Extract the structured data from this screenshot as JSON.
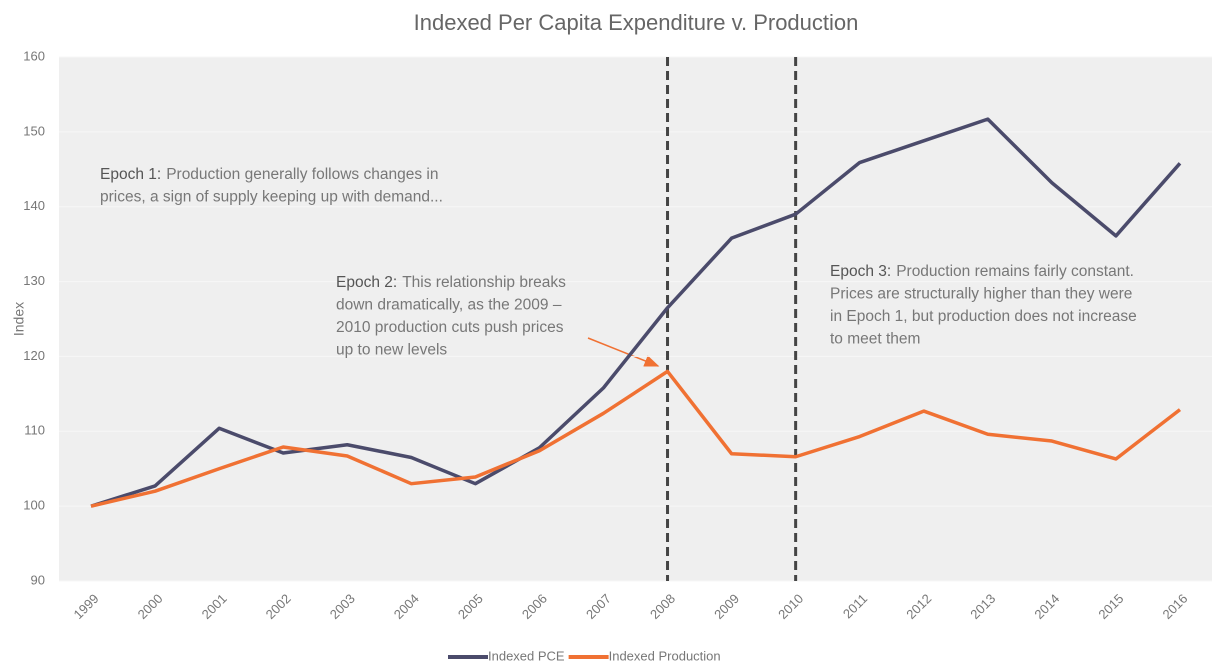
{
  "chart_data": {
    "type": "line",
    "title": "Indexed Per Capita Expenditure v. Production",
    "y_label": "Index",
    "categories": [
      "1999",
      "2000",
      "2001",
      "2002",
      "2003",
      "2004",
      "2005",
      "2006",
      "2007",
      "2008",
      "2009",
      "2010",
      "2011",
      "2012",
      "2013",
      "2014",
      "2015",
      "2016"
    ],
    "series": [
      {
        "name": "Indexed PCE",
        "color": "#4b4b6b",
        "values": [
          100,
          102.7,
          110.4,
          107.1,
          108.2,
          106.5,
          103,
          107.8,
          115.8,
          126.5,
          135.8,
          139,
          145.9,
          148.8,
          151.7,
          143.2,
          136.1,
          145.8
        ]
      },
      {
        "name": "Indexed Production",
        "color": "#f07133",
        "values": [
          100,
          102,
          105,
          107.9,
          106.7,
          103,
          103.9,
          107.4,
          112.4,
          118,
          107,
          106.6,
          109.3,
          112.7,
          109.6,
          108.7,
          106.3,
          112.9
        ]
      }
    ],
    "ylim": [
      90,
      160
    ],
    "yticks": [
      90,
      100,
      110,
      120,
      130,
      140,
      150,
      160
    ],
    "grid": true,
    "legend": "bottom",
    "marker_categories": [
      "2008",
      "2010"
    ],
    "annotations": [
      {
        "title": "Epoch 1:",
        "lines": [
          "Production generally follows changes in",
          "prices, a sign of supply keeping up with demand..."
        ]
      },
      {
        "title": "Epoch 2:",
        "lines": [
          "This relationship breaks",
          "down dramatically, as the 2009 –",
          "2010 production cuts push prices",
          "up to new levels"
        ]
      },
      {
        "title": "Epoch 3:",
        "lines": [
          "Production remains fairly constant.",
          "Prices are structurally higher than they were",
          "in Epoch 1, but production does not increase",
          "to meet them"
        ]
      }
    ]
  }
}
